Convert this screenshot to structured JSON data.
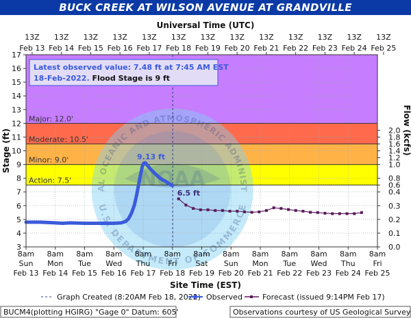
{
  "chart_data": {
    "type": "line",
    "title": "BUCK CREEK AT WILSON AVENUE AT GRANDVILLE",
    "top_axis_label": "Universal Time (UTC)",
    "top_ticks": [
      {
        "t": "13Z",
        "d": "Feb 13"
      },
      {
        "t": "13Z",
        "d": "Feb 14"
      },
      {
        "t": "13Z",
        "d": "Feb 15"
      },
      {
        "t": "13Z",
        "d": "Feb 16"
      },
      {
        "t": "13Z",
        "d": "Feb 17"
      },
      {
        "t": "13Z",
        "d": "Feb 18"
      },
      {
        "t": "13Z",
        "d": "Feb 19"
      },
      {
        "t": "13Z",
        "d": "Feb 20"
      },
      {
        "t": "13Z",
        "d": "Feb 21"
      },
      {
        "t": "13Z",
        "d": "Feb 22"
      },
      {
        "t": "13Z",
        "d": "Feb 23"
      },
      {
        "t": "13Z",
        "d": "Feb 24"
      },
      {
        "t": "13Z",
        "d": "Feb 25"
      }
    ],
    "bottom_axis_label": "Site Time (EST)",
    "bottom_ticks": [
      {
        "t": "8am",
        "w": "Sun",
        "d": "Feb 13"
      },
      {
        "t": "8am",
        "w": "Mon",
        "d": "Feb 14"
      },
      {
        "t": "8am",
        "w": "Tue",
        "d": "Feb 15"
      },
      {
        "t": "8am",
        "w": "Wed",
        "d": "Feb 16"
      },
      {
        "t": "8am",
        "w": "Thu",
        "d": "Feb 17"
      },
      {
        "t": "8am",
        "w": "Fri",
        "d": "Feb 18"
      },
      {
        "t": "8am",
        "w": "Sat",
        "d": "Feb 19"
      },
      {
        "t": "8am",
        "w": "Sun",
        "d": "Feb 20"
      },
      {
        "t": "8am",
        "w": "Mon",
        "d": "Feb 21"
      },
      {
        "t": "8am",
        "w": "Tue",
        "d": "Feb 22"
      },
      {
        "t": "8am",
        "w": "Wed",
        "d": "Feb 23"
      },
      {
        "t": "8am",
        "w": "Thu",
        "d": "Feb 24"
      },
      {
        "t": "8am",
        "w": "Fri",
        "d": "Feb 25"
      }
    ],
    "ylabel": "Stage (ft)",
    "ylim": [
      3,
      17
    ],
    "yticks": [
      3,
      4,
      5,
      6,
      7,
      8,
      9,
      10,
      11,
      12,
      13,
      14,
      15,
      16,
      17
    ],
    "y2label": "Flow (kcfs)",
    "y2ticks": [
      {
        "stage": 3.0,
        "label": "0.0"
      },
      {
        "stage": 4.0,
        "label": "0.1"
      },
      {
        "stage": 5.0,
        "label": "0.2"
      },
      {
        "stage": 6.0,
        "label": "0.3"
      },
      {
        "stage": 7.0,
        "label": "0.4"
      },
      {
        "stage": 7.5,
        "label": "0.6"
      },
      {
        "stage": 8.0,
        "label": "0.8"
      },
      {
        "stage": 9.0,
        "label": "1.0"
      },
      {
        "stage": 9.5,
        "label": "1.2"
      },
      {
        "stage": 10.0,
        "label": "1.4"
      },
      {
        "stage": 10.5,
        "label": "1.6"
      },
      {
        "stage": 11.0,
        "label": "1.8"
      },
      {
        "stage": 11.5,
        "label": "2.0"
      }
    ],
    "xlim_days": [
      0,
      12
    ],
    "x_unit": "days after 8am Sun Feb 13 (EST)",
    "flood_categories": [
      {
        "name": "Action",
        "label": "Action: 7.5'",
        "from": 7.5,
        "to": 9.0,
        "color": "#ffff00"
      },
      {
        "name": "Minor",
        "label": "Minor: 9.0'",
        "from": 9.0,
        "to": 10.5,
        "color": "#ffb347"
      },
      {
        "name": "Moderate",
        "label": "Moderate: 10.5'",
        "from": 10.5,
        "to": 12.0,
        "color": "#ff6a4d"
      },
      {
        "name": "Major",
        "label": "Major: 12.0'",
        "from": 12.0,
        "to": 17.0,
        "color": "#c77dff"
      }
    ],
    "graph_created_x": 5.01,
    "series": [
      {
        "name": "Observed",
        "color": "#3b5bdb",
        "x": [
          0,
          0.5,
          1,
          1.25,
          1.5,
          2,
          2.5,
          3,
          3.25,
          3.4,
          3.5,
          3.6,
          3.7,
          3.78,
          3.85,
          3.92,
          3.97,
          4.02,
          4.07,
          4.12,
          4.18,
          4.26,
          4.35,
          4.45,
          4.55,
          4.65,
          4.75,
          4.85,
          4.95,
          5.0
        ],
        "y": [
          4.8,
          4.8,
          4.75,
          4.72,
          4.75,
          4.72,
          4.72,
          4.72,
          4.75,
          4.85,
          5.05,
          5.45,
          6.05,
          6.8,
          7.6,
          8.35,
          8.85,
          9.1,
          9.13,
          9.0,
          8.85,
          8.65,
          8.45,
          8.25,
          8.05,
          7.9,
          7.8,
          7.65,
          7.52,
          7.48
        ]
      },
      {
        "name": "Forecast",
        "color": "#5a1a5a",
        "x": [
          5.21,
          5.46,
          5.71,
          5.96,
          6.21,
          6.46,
          6.71,
          6.96,
          7.21,
          7.46,
          7.71,
          7.96,
          8.21,
          8.46,
          8.71,
          8.96,
          9.21,
          9.46,
          9.71,
          9.96,
          10.21,
          10.46,
          10.71,
          10.96,
          11.21,
          11.46
        ],
        "y": [
          6.5,
          6.05,
          5.8,
          5.7,
          5.7,
          5.65,
          5.65,
          5.6,
          5.6,
          5.55,
          5.52,
          5.55,
          5.65,
          5.85,
          5.8,
          5.72,
          5.65,
          5.6,
          5.52,
          5.5,
          5.45,
          5.42,
          5.42,
          5.42,
          5.42,
          5.5
        ]
      }
    ],
    "annotations": {
      "peak": {
        "text": "9.13 ft",
        "x": 4.07,
        "y": 9.13
      },
      "forecast_start": {
        "text": "6.5 ft",
        "x": 5.21,
        "y": 6.5
      }
    },
    "latest_box": {
      "line1": "Latest observed value: 7.48 ft at 7:45 AM EST",
      "line2a": "18-Feb-2022.",
      "line2b": "Flood Stage is 9 ft"
    },
    "watermark": {
      "org": "NATIONAL OCEANIC AND ATMOSPHERIC ADMINISTRATION",
      "dept": "U.S. DEPARTMENT OF COMMERCE",
      "logo": "NOAA"
    },
    "legend": {
      "graph_created": "Graph Created (8:20AM Feb 18, 2022)",
      "observed": "Observed",
      "forecast": "Forecast (issued 9:14PM Feb 17)"
    },
    "footer": {
      "left": "BUCM4(plotting HGIRG) \"Gage 0\" Datum: 605'",
      "right": "Observations courtesy of US Geological Survey"
    },
    "grid": true
  }
}
